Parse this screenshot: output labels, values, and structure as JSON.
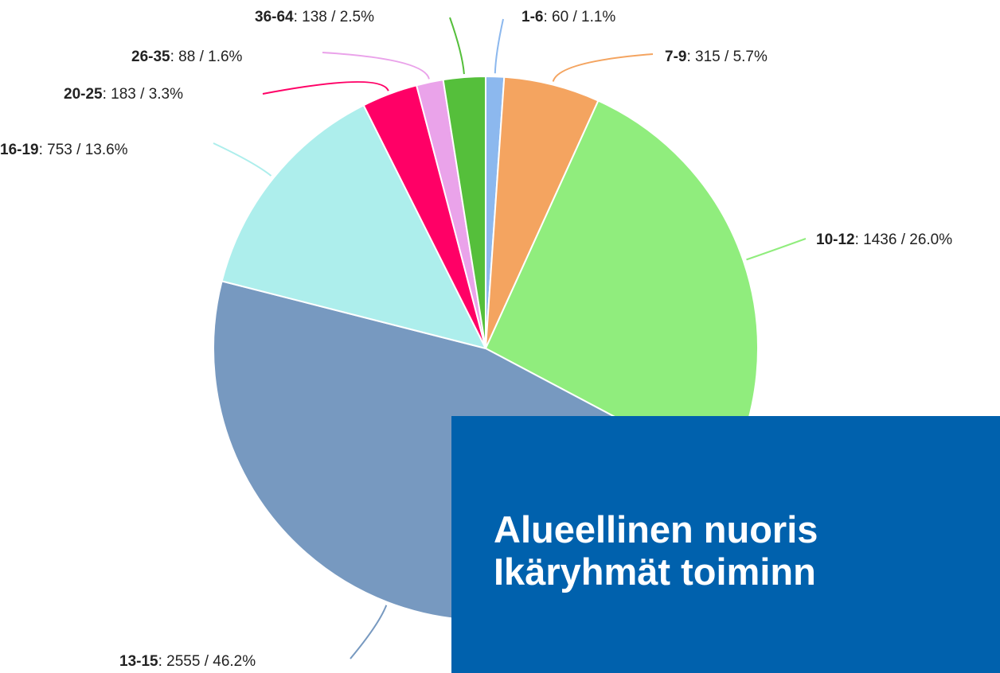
{
  "chart_data": {
    "type": "pie",
    "categories": [
      "1-6",
      "7-9",
      "10-12",
      "13-15",
      "16-19",
      "20-25",
      "26-35",
      "36-64"
    ],
    "values": [
      60,
      315,
      1436,
      2555,
      753,
      183,
      88,
      138
    ],
    "value_labels": [
      ": 60 / 1.1%",
      ": 315 / 5.7%",
      ": 1436 / 26.0%",
      ": 2555 / 46.2%",
      ": 753 / 13.6%",
      ": 183 / 3.3%",
      ": 88 / 1.6%",
      ": 138 / 2.5%"
    ],
    "colors": [
      "#8cb8ee",
      "#f4a460",
      "#90ed7d",
      "#7799c0",
      "#adeeec",
      "#ff0066",
      "#eaa3ea",
      "#55bf3b"
    ]
  },
  "overlay": {
    "lines": [
      "Alueellinen nuoris",
      "Ikäryhmät toiminn"
    ]
  }
}
